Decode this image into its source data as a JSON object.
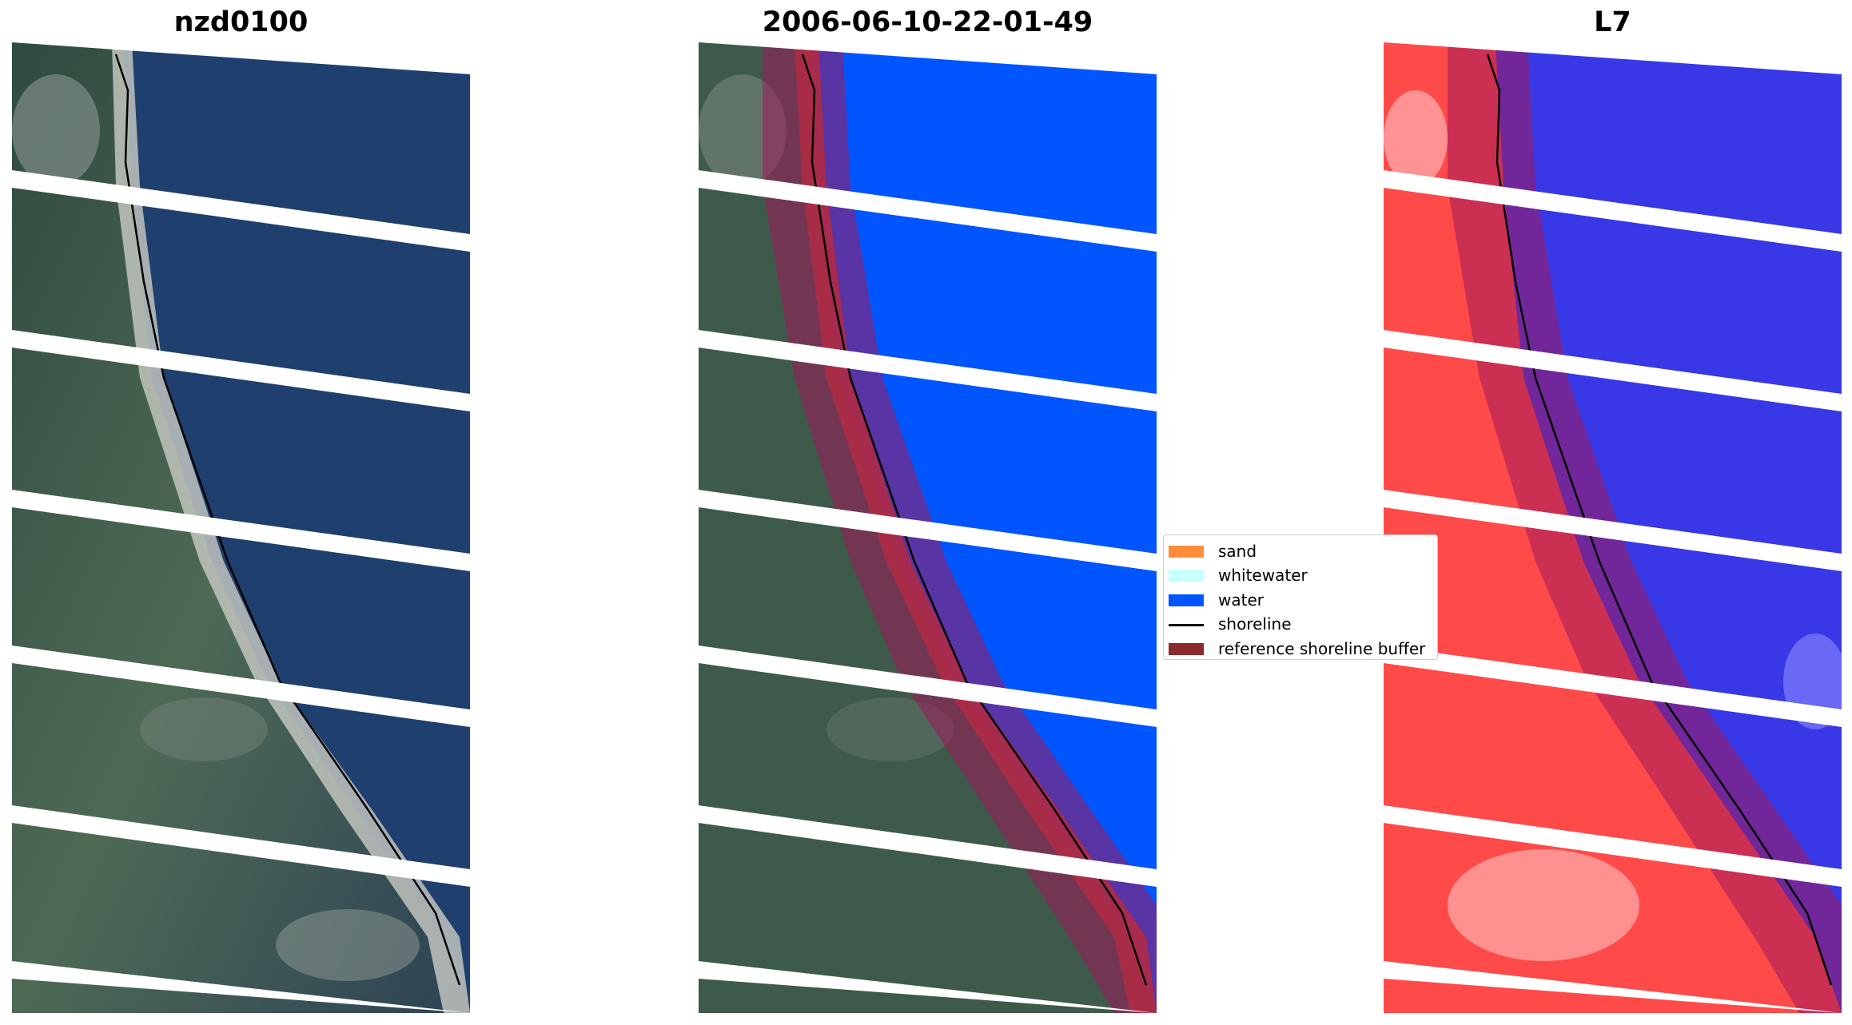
{
  "panels": [
    {
      "title": "nzd0100",
      "kind": "rgb"
    },
    {
      "title": "2006-06-10-22-01-49",
      "kind": "classified"
    },
    {
      "title": "L7",
      "kind": "index"
    }
  ],
  "legend": {
    "items": [
      {
        "label": "sand",
        "type": "patch",
        "color": "#ff8c3a"
      },
      {
        "label": "whitewater",
        "type": "patch",
        "color": "#c8ffff"
      },
      {
        "label": "water",
        "type": "patch",
        "color": "#0055ff"
      },
      {
        "label": "shoreline",
        "type": "line",
        "color": "#000000"
      },
      {
        "label": "reference shoreline buffer",
        "type": "patch",
        "color": "#8b2a2e"
      }
    ]
  },
  "colors": {
    "land": "#3d5a4a",
    "ocean_rgb": "#1f3f6e",
    "water_class": "#0055ff",
    "sand_class": "#c0402e",
    "buffer": "#a0195a",
    "index_land": "#ff4a4a",
    "index_water": "#3030e0",
    "stripe": "#ffffff"
  }
}
